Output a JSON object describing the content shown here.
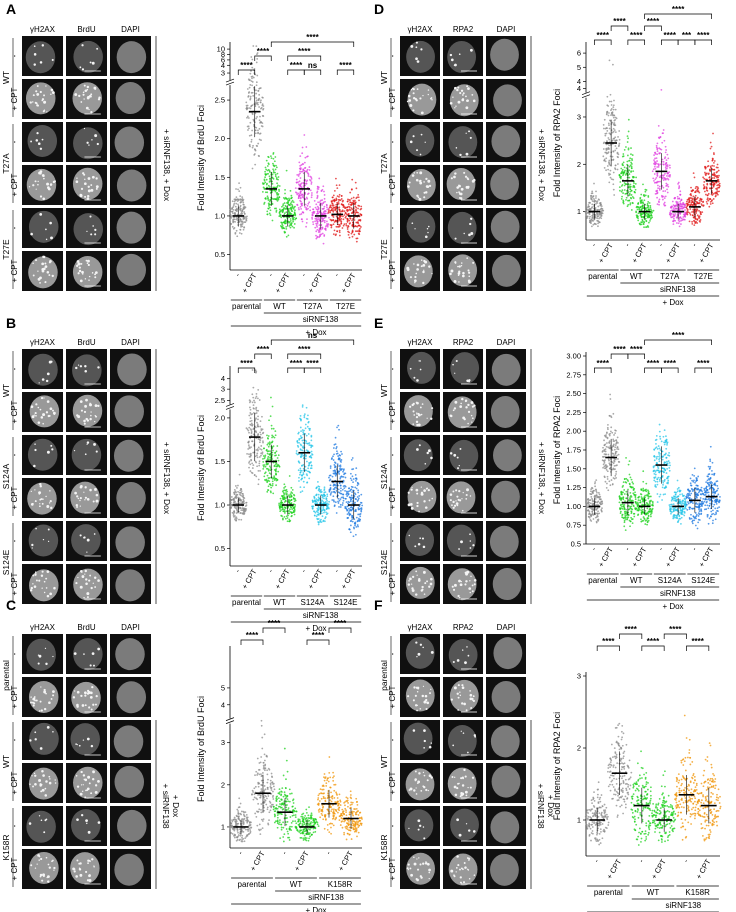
{
  "figure": {
    "panels": [
      {
        "letter": "A",
        "stain": "BrdU",
        "channels": [
          "γH2AX",
          "BrdU",
          "DAPI"
        ],
        "row_groups": [
          "WT",
          "T27A",
          "T27E"
        ],
        "row_treatments": [
          "-",
          "+ CPT"
        ],
        "side_label": "+ siRNF138, + Dox",
        "chart": {
          "ylabel": "Fold Intensity of BrdU Foci",
          "yticks": [
            "0.5",
            "1.0",
            "1.5",
            "2.0",
            "2.5",
            "3",
            "4",
            "6",
            "8",
            "10"
          ],
          "conditions": [
            "-",
            "+ CPT",
            "-",
            "+ CPT",
            "-",
            "+ CPT",
            "-",
            "+ CPT"
          ],
          "groups": [
            "parental",
            "WT",
            "T27A",
            "T27E"
          ],
          "sirna": "siRNF138",
          "dox": "+ Dox",
          "brackets": [
            "****",
            "****",
            "****",
            "ns",
            "****",
            "****",
            "****"
          ]
        }
      },
      {
        "letter": "B",
        "stain": "BrdU",
        "channels": [
          "γH2AX",
          "BrdU",
          "DAPI"
        ],
        "row_groups": [
          "WT",
          "S124A",
          "S124E"
        ],
        "row_treatments": [
          "-",
          "+ CPT"
        ],
        "side_label": "+ siRNF138, + Dox",
        "chart": {
          "ylabel": "Fold Intensity of BrdU Foci",
          "yticks": [
            "0.5",
            "1.0",
            "1.5",
            "2.0",
            "2.5",
            "3",
            "4"
          ],
          "conditions": [
            "-",
            "+ CPT",
            "-",
            "+ CPT",
            "-",
            "+ CPT",
            "-",
            "+ CPT"
          ],
          "groups": [
            "parental",
            "WT",
            "S124A",
            "S124E"
          ],
          "sirna": "siRNF138",
          "dox": "+ Dox",
          "brackets": [
            "****",
            "****",
            "****",
            "****",
            "****",
            "ns"
          ]
        }
      },
      {
        "letter": "C",
        "stain": "BrdU",
        "channels": [
          "γH2AX",
          "BrdU",
          "DAPI"
        ],
        "row_groups": [
          "parental",
          "WT",
          "K158R"
        ],
        "row_treatments": [
          "-",
          "+ CPT"
        ],
        "side_label_1": "+ siRNF138",
        "side_label_2": "+ Dox",
        "chart": {
          "ylabel": "Fold Intensity of BrdU Foci",
          "yticks": [
            "1",
            "2",
            "3",
            "4",
            "5"
          ],
          "conditions": [
            "-",
            "+ CPT",
            "-",
            "+ CPT",
            "-",
            "+ CPT"
          ],
          "groups": [
            "parental",
            "WT",
            "K158R"
          ],
          "sirna": "siRNF138",
          "dox": "+ Dox",
          "brackets": [
            "****",
            "****",
            "****",
            "****"
          ]
        }
      },
      {
        "letter": "D",
        "stain": "RPA2",
        "channels": [
          "γH2AX",
          "RPA2",
          "DAPI"
        ],
        "row_groups": [
          "WT",
          "T27A",
          "T27E"
        ],
        "row_treatments": [
          "-",
          "+ CPT"
        ],
        "side_label": "+ siRNF138, + Dox",
        "chart": {
          "ylabel": "Fold Intensity of RPA2 Foci",
          "yticks": [
            "1",
            "2",
            "3",
            "4",
            "4",
            "5",
            "6"
          ],
          "conditions": [
            "-",
            "+ CPT",
            "-",
            "+ CPT",
            "-",
            "+ CPT",
            "-",
            "+ CPT"
          ],
          "groups": [
            "parental",
            "WT",
            "T27A",
            "T27E"
          ],
          "sirna": "siRNF138",
          "dox": "+ Dox",
          "brackets": [
            "****",
            "****",
            "****",
            "****",
            "****",
            "***",
            "****",
            "****"
          ]
        }
      },
      {
        "letter": "E",
        "stain": "RPA2",
        "channels": [
          "γH2AX",
          "RPA2",
          "DAPI"
        ],
        "row_groups": [
          "WT",
          "S124A",
          "S124E"
        ],
        "row_treatments": [
          "-",
          "+ CPT"
        ],
        "side_label": "+ siRNF138, + Dox",
        "chart": {
          "ylabel": "Fold Intensity of RPA2 Foci",
          "yticks": [
            "0.5",
            "0.75",
            "1.00",
            "1.25",
            "1.50",
            "1.75",
            "2.00",
            "2.25",
            "2.50",
            "2.75",
            "3.00"
          ],
          "conditions": [
            "-",
            "+ CPT",
            "-",
            "+ CPT",
            "-",
            "+ CPT",
            "-",
            "+ CPT"
          ],
          "groups": [
            "parental",
            "WT",
            "S124A",
            "S124E"
          ],
          "sirna": "siRNF138",
          "dox": "+ Dox",
          "brackets": [
            "****",
            "****",
            "****",
            "****",
            "****",
            "****",
            "****",
            "****"
          ]
        }
      },
      {
        "letter": "F",
        "stain": "RPA2",
        "channels": [
          "γH2AX",
          "RPA2",
          "DAPI"
        ],
        "row_groups": [
          "parental",
          "WT",
          "K158R"
        ],
        "row_treatments": [
          "-",
          "+ CPT"
        ],
        "side_label_1": "+ siRNF138",
        "side_label_2": "+ Dox",
        "chart": {
          "ylabel": "Fold Intensity of RPA2 Foci",
          "yticks": [
            "1",
            "2",
            "3"
          ],
          "conditions": [
            "-",
            "+ CPT",
            "-",
            "+ CPT",
            "-",
            "+ CPT"
          ],
          "groups": [
            "parental",
            "WT",
            "K158R"
          ],
          "sirna": "siRNF138",
          "dox": "+ Dox",
          "brackets": [
            "****",
            "****",
            "****",
            "****",
            "****"
          ]
        }
      }
    ],
    "colors": {
      "parental": "#8c8c8c",
      "WT": "#1fd11f",
      "T27A": "#e040e0",
      "T27E": "#e01a1a",
      "S124A": "#26c6e8",
      "S124E": "#1f7ae0",
      "K158R": "#f0960a"
    }
  }
}
